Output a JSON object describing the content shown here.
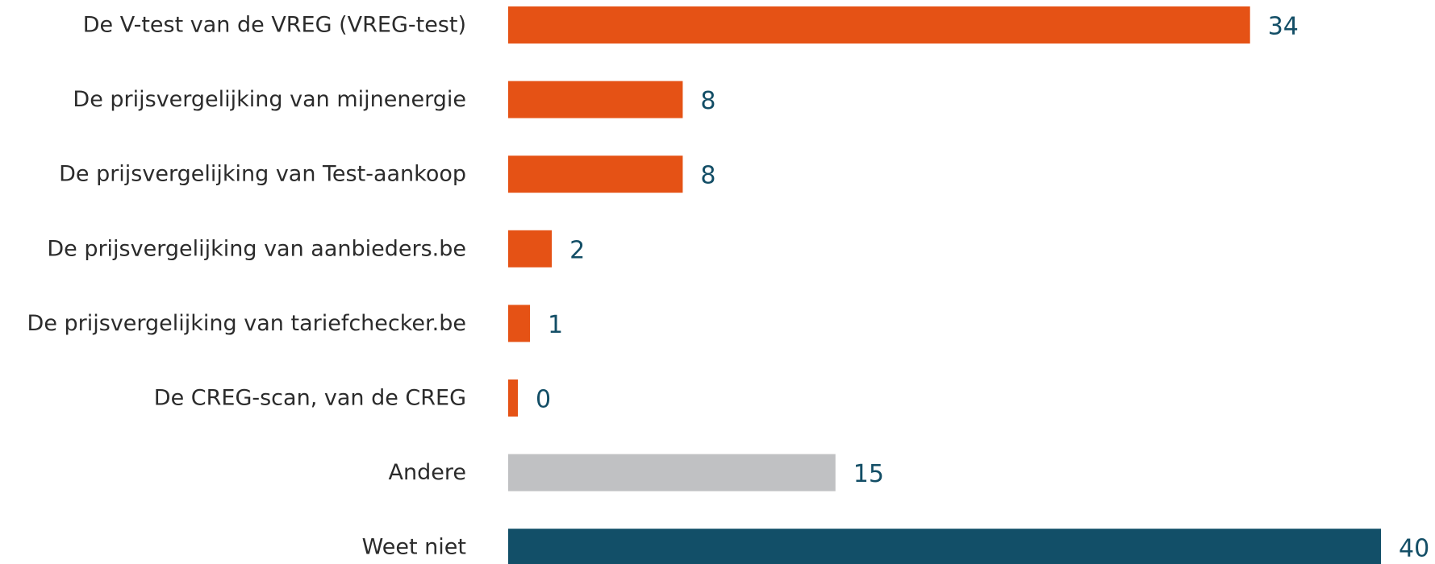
{
  "chart_data": {
    "type": "bar",
    "orientation": "horizontal",
    "title": "",
    "xlabel": "",
    "ylabel": "",
    "categories": [
      "De V-test van de VREG (VREG-test)",
      "De prijsvergelijking van mijnenergie",
      "De prijsvergelijking van Test-aankoop",
      "De prijsvergelijking van aanbieders.be",
      "De prijsvergelijking van tariefchecker.be",
      "De CREG-scan, van de CREG",
      "Andere",
      "Weet niet"
    ],
    "values": [
      34,
      8,
      8,
      2,
      1,
      0,
      15,
      40
    ],
    "value_labels": [
      "34",
      "8",
      "8",
      "2",
      "1",
      "0",
      "15",
      "40"
    ],
    "bar_colors": [
      "#e55215",
      "#e55215",
      "#e55215",
      "#e55215",
      "#e55215",
      "#e55215",
      "#c0c1c3",
      "#124f68"
    ],
    "value_label_color": "#134e66",
    "xlim": [
      0,
      40
    ],
    "grid": false,
    "legend": "none"
  }
}
